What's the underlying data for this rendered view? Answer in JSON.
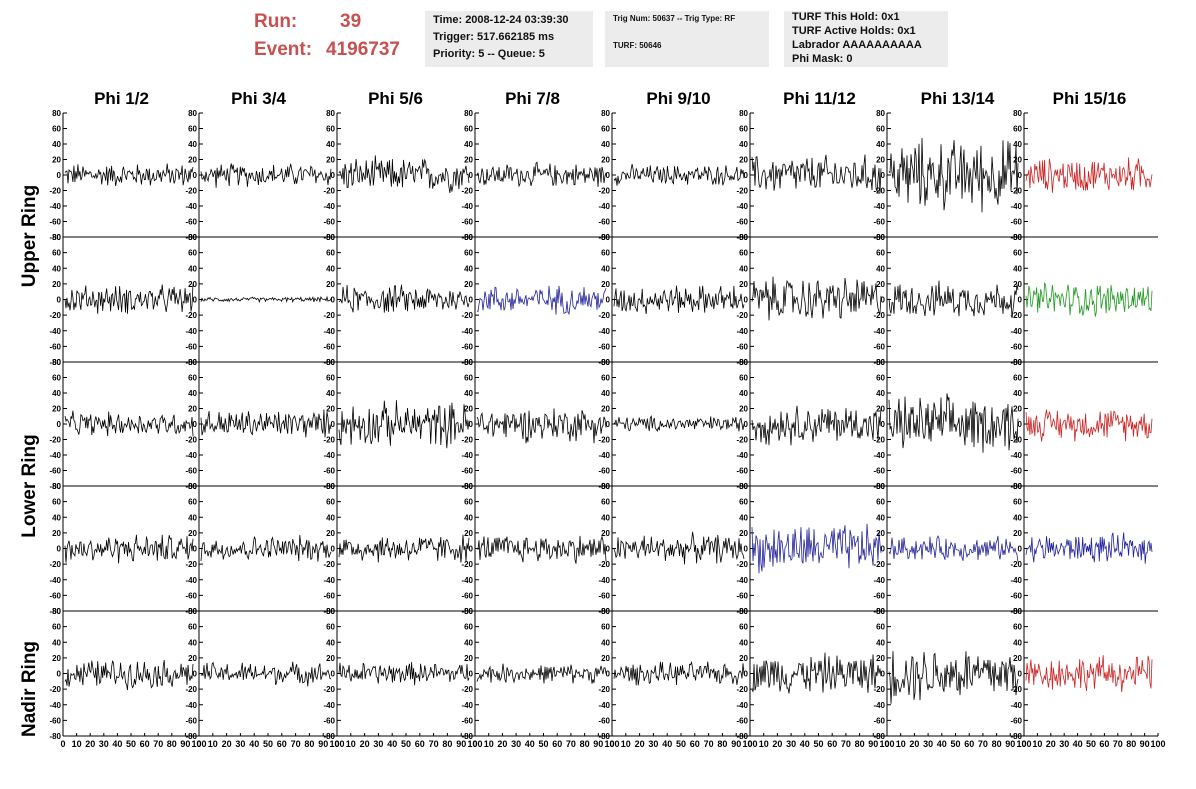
{
  "header": {
    "run_label": "Run:",
    "run_value": "39",
    "event_label": "Event:",
    "event_value": "4196737"
  },
  "info": {
    "time": "Time: 2008-12-24 03:39:30",
    "trigger": "Trigger: 517.662185 ms",
    "priority": "Priority: 5 -- Queue: 5",
    "trig_num": "Trig Num: 50637 -- Trig Type: RF",
    "turf": "TURF: 50646",
    "turf_this_hold": "TURF This Hold: 0x1",
    "turf_active_holds": "TURF Active Holds: 0x1",
    "labrador": "Labrador AAAAAAAAAA",
    "phi_mask": "Phi Mask: 0"
  },
  "columns": [
    "Phi 1/2",
    "Phi 3/4",
    "Phi 5/6",
    "Phi 7/8",
    "Phi 9/10",
    "Phi 11/12",
    "Phi 13/14",
    "Phi 15/16"
  ],
  "ring_labels": [
    "Upper Ring",
    "Lower Ring",
    "Nadir Ring"
  ],
  "colors": {
    "black": "#000000",
    "red": "#cc2222",
    "blue": "#22229a",
    "green": "#229922",
    "header_red": "#c85050"
  },
  "chart_data": {
    "type": "line",
    "description_rows": 5,
    "description_cols": 8,
    "ylim": [
      -80,
      80
    ],
    "xlim": [
      0,
      100
    ],
    "yticks": [
      80,
      60,
      40,
      20,
      0,
      -20,
      -40,
      -60,
      -80
    ],
    "xtick_labels": [
      "0",
      "10",
      "20",
      "30",
      "40",
      "50",
      "60",
      "70",
      "80",
      "90",
      "100"
    ],
    "x_axis_text": "0 102030405060708090100",
    "panels": [
      [
        "black",
        "black",
        "black",
        "black",
        "black",
        "black",
        "black",
        "red"
      ],
      [
        "black",
        "black",
        "black",
        "blue",
        "black",
        "black",
        "black",
        "green"
      ],
      [
        "black",
        "black",
        "black",
        "black",
        "black",
        "black",
        "black",
        "red"
      ],
      [
        "black",
        "black",
        "black",
        "black",
        "black",
        "blue",
        "blue",
        "blue"
      ],
      [
        "black",
        "black",
        "black",
        "black",
        "black",
        "black",
        "black",
        "red"
      ]
    ],
    "amplitude": [
      [
        15,
        15,
        22,
        15,
        13,
        25,
        45,
        22
      ],
      [
        18,
        3,
        18,
        18,
        18,
        28,
        22,
        22
      ],
      [
        15,
        18,
        28,
        22,
        10,
        25,
        35,
        20
      ],
      [
        18,
        16,
        18,
        18,
        18,
        30,
        15,
        18
      ],
      [
        18,
        14,
        14,
        12,
        14,
        25,
        35,
        22
      ]
    ]
  }
}
